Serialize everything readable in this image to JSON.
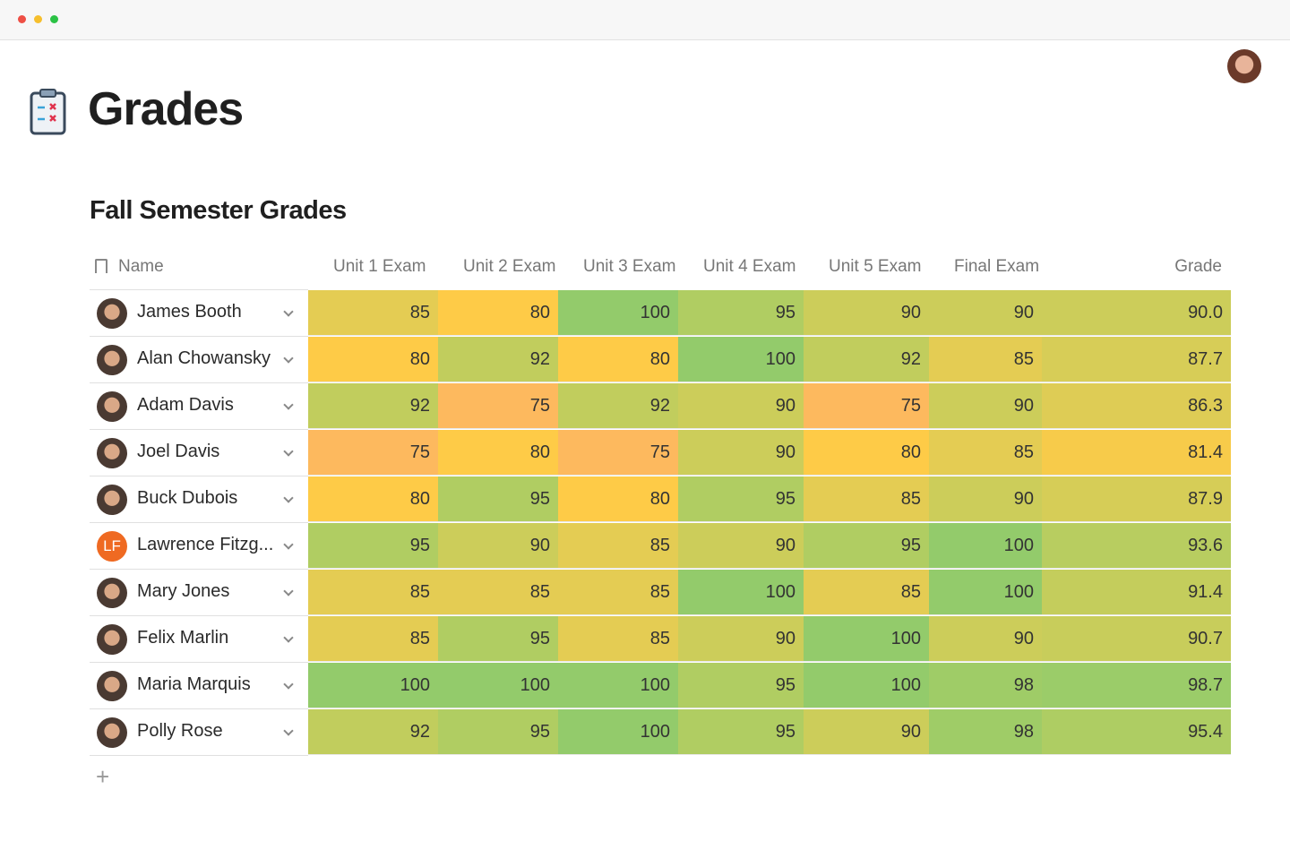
{
  "header": {
    "title": "Grades"
  },
  "table": {
    "title": "Fall Semester Grades",
    "columns": [
      "Name",
      "Unit 1 Exam",
      "Unit 2 Exam",
      "Unit 3 Exam",
      "Unit 4 Exam",
      "Unit 5 Exam",
      "Final Exam",
      "Grade"
    ],
    "color_scale": [
      {
        "value": 75,
        "color": "#fdb95e"
      },
      {
        "value": 80,
        "color": "#fecb47"
      },
      {
        "value": 85,
        "color": "#e4cc53"
      },
      {
        "value": 90,
        "color": "#cccd5a"
      },
      {
        "value": 95,
        "color": "#b0cd62"
      },
      {
        "value": 100,
        "color": "#93cb6b"
      }
    ],
    "rows": [
      {
        "name": "James Booth",
        "scores": [
          85,
          80,
          100,
          95,
          90,
          90
        ],
        "grade": "90.0"
      },
      {
        "name": "Alan Chowansky",
        "scores": [
          80,
          92,
          80,
          100,
          92,
          85
        ],
        "grade": "87.7"
      },
      {
        "name": "Adam Davis",
        "scores": [
          92,
          75,
          92,
          90,
          75,
          90
        ],
        "grade": "86.3"
      },
      {
        "name": "Joel Davis",
        "scores": [
          75,
          80,
          75,
          90,
          80,
          85
        ],
        "grade": "81.4"
      },
      {
        "name": "Buck Dubois",
        "scores": [
          80,
          95,
          80,
          95,
          85,
          90
        ],
        "grade": "87.9"
      },
      {
        "name": "Lawrence Fitzg...",
        "initials": "LF",
        "scores": [
          95,
          90,
          85,
          90,
          95,
          100
        ],
        "grade": "93.6"
      },
      {
        "name": "Mary Jones",
        "scores": [
          85,
          85,
          85,
          100,
          85,
          100
        ],
        "grade": "91.4"
      },
      {
        "name": "Felix Marlin",
        "scores": [
          85,
          95,
          85,
          90,
          100,
          90
        ],
        "grade": "90.7"
      },
      {
        "name": "Maria Marquis",
        "scores": [
          100,
          100,
          100,
          95,
          100,
          98
        ],
        "grade": "98.7"
      },
      {
        "name": "Polly Rose",
        "scores": [
          92,
          95,
          100,
          95,
          90,
          98
        ],
        "grade": "95.4"
      }
    ]
  }
}
